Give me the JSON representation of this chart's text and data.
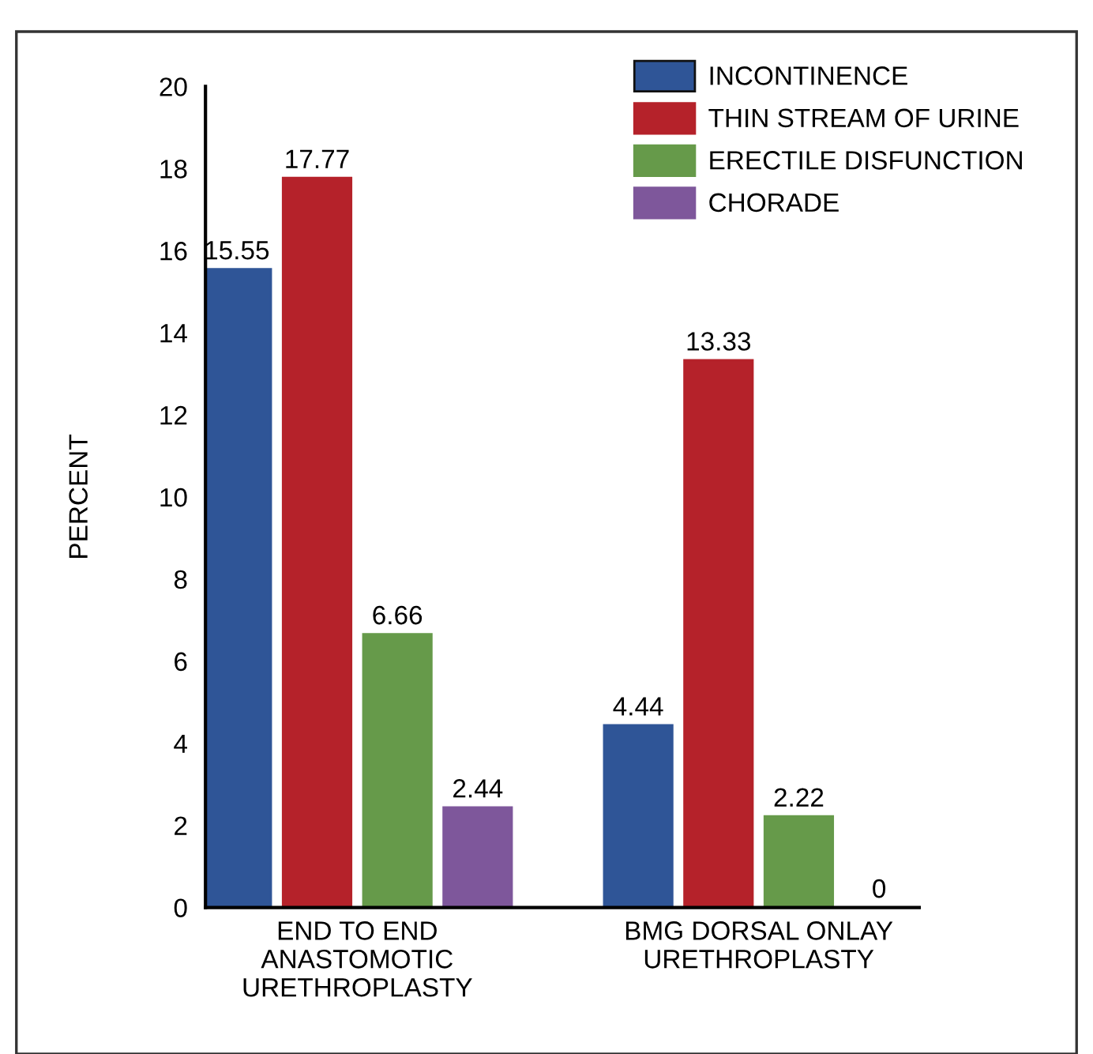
{
  "chart_data": {
    "type": "bar",
    "categories": [
      "END TO END\nANASTOMOTIC\nURETHROPLASTY",
      "BMG DORSAL ONLAY\nURETHROPLASTY"
    ],
    "ylabel": "PERCENT",
    "ylim": [
      0,
      20
    ],
    "yticks": [
      0,
      2,
      4,
      6,
      8,
      10,
      12,
      14,
      16,
      18,
      20
    ],
    "data_labels": true,
    "legend": "top right",
    "grid": false,
    "series": [
      {
        "name": "INCONTINENCE",
        "color": "#2f5597",
        "values": [
          15.55,
          4.44
        ]
      },
      {
        "name": "THIN STREAM OF URINE",
        "color": "#b5222a",
        "values": [
          17.77,
          13.33
        ]
      },
      {
        "name": "ERECTILE DISFUNCTION",
        "color": "#669a4a",
        "values": [
          6.66,
          2.22
        ]
      },
      {
        "name": "CHORADE",
        "color": "#7e579b",
        "values": [
          2.44,
          0
        ]
      }
    ]
  }
}
